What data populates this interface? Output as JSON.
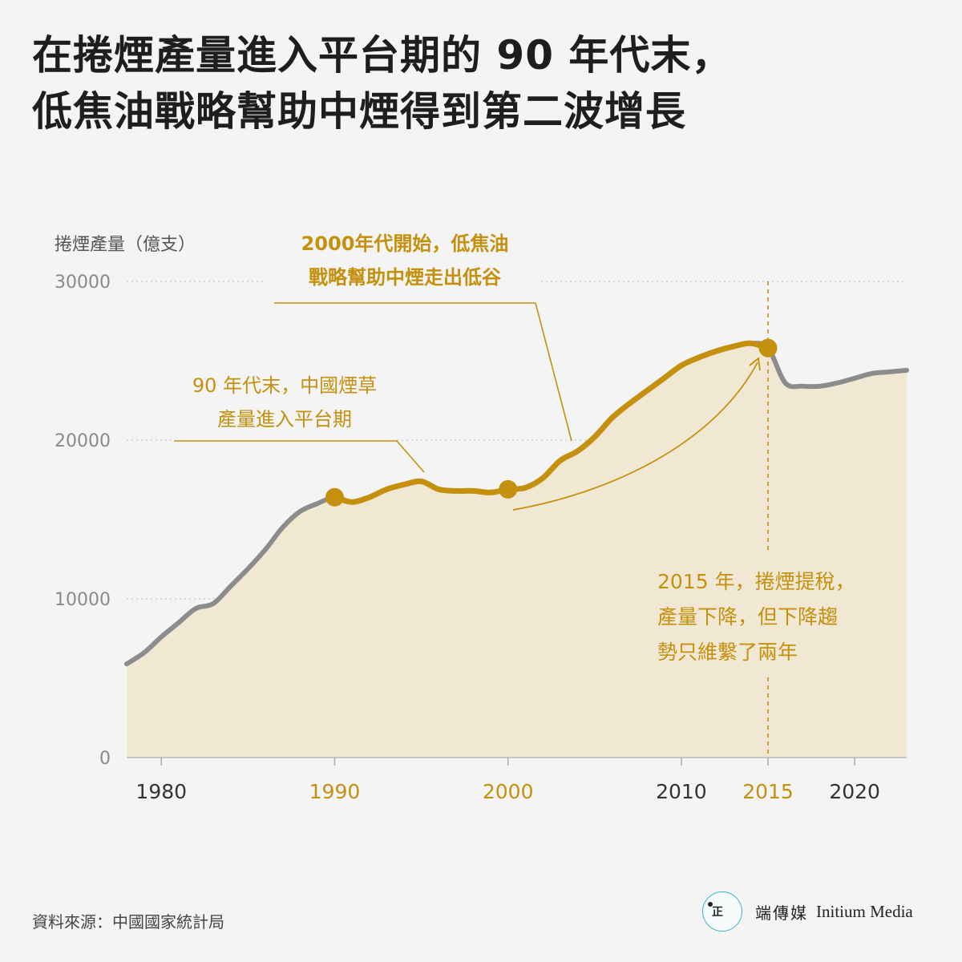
{
  "title": {
    "line1": "在捲煙產量進入平台期的 90 年代末，",
    "line2": "低焦油戰略幫助中煙得到第二波增長"
  },
  "source": "資料來源：中國國家統計局",
  "brand": {
    "logo_mark": "正​",
    "name_zh": "端傳媒",
    "name_en": "Initium Media"
  },
  "colors": {
    "accent": "#c4900e",
    "grey_line": "#8c8c8c",
    "area_fill": "#f1e8d4",
    "background": "#f4f4f4"
  },
  "chart_data": {
    "type": "area",
    "ylabel": "捲煙產量（億支）",
    "ylim": [
      0,
      30000
    ],
    "xlim": [
      1978,
      2023
    ],
    "yticks": [
      0,
      10000,
      20000,
      30000
    ],
    "xticks": [
      {
        "value": 1980,
        "label": "1980",
        "highlight": false
      },
      {
        "value": 1990,
        "label": "1990",
        "highlight": true
      },
      {
        "value": 2000,
        "label": "2000",
        "highlight": true
      },
      {
        "value": 2010,
        "label": "2010",
        "highlight": false
      },
      {
        "value": 2015,
        "label": "2015",
        "highlight": true
      },
      {
        "value": 2020,
        "label": "2020",
        "highlight": false
      }
    ],
    "x": [
      1978,
      1979,
      1980,
      1981,
      1982,
      1983,
      1984,
      1985,
      1986,
      1987,
      1988,
      1989,
      1990,
      1991,
      1992,
      1993,
      1994,
      1995,
      1996,
      1997,
      1998,
      1999,
      2000,
      2001,
      2002,
      2003,
      2004,
      2005,
      2006,
      2007,
      2008,
      2009,
      2010,
      2011,
      2012,
      2013,
      2014,
      2015,
      2016,
      2017,
      2018,
      2019,
      2020,
      2021,
      2022,
      2023
    ],
    "values": [
      5900,
      6600,
      7600,
      8500,
      9400,
      9700,
      10800,
      11900,
      13100,
      14500,
      15500,
      16000,
      16400,
      16100,
      16400,
      16900,
      17200,
      17400,
      16900,
      16800,
      16800,
      16700,
      16900,
      17000,
      17600,
      18700,
      19300,
      20200,
      21400,
      22300,
      23100,
      23900,
      24700,
      25200,
      25600,
      25900,
      26100,
      25800,
      23600,
      23400,
      23400,
      23600,
      23900,
      24200,
      24300,
      24400
    ],
    "highlight_range": [
      1990,
      2015
    ],
    "markers": [
      1990,
      2000,
      2015
    ],
    "annotations": [
      {
        "text1": "2000年代開始，低焦油",
        "text2": "戰略幫助中煙走出低谷"
      },
      {
        "text1": "90 年代末，中國煙草",
        "text2": "產量進入平台期"
      },
      {
        "text1": "2015 年，捲煙提稅，",
        "text2": "產量下降，但下降趨",
        "text3": "勢只維繫了兩年"
      }
    ]
  }
}
